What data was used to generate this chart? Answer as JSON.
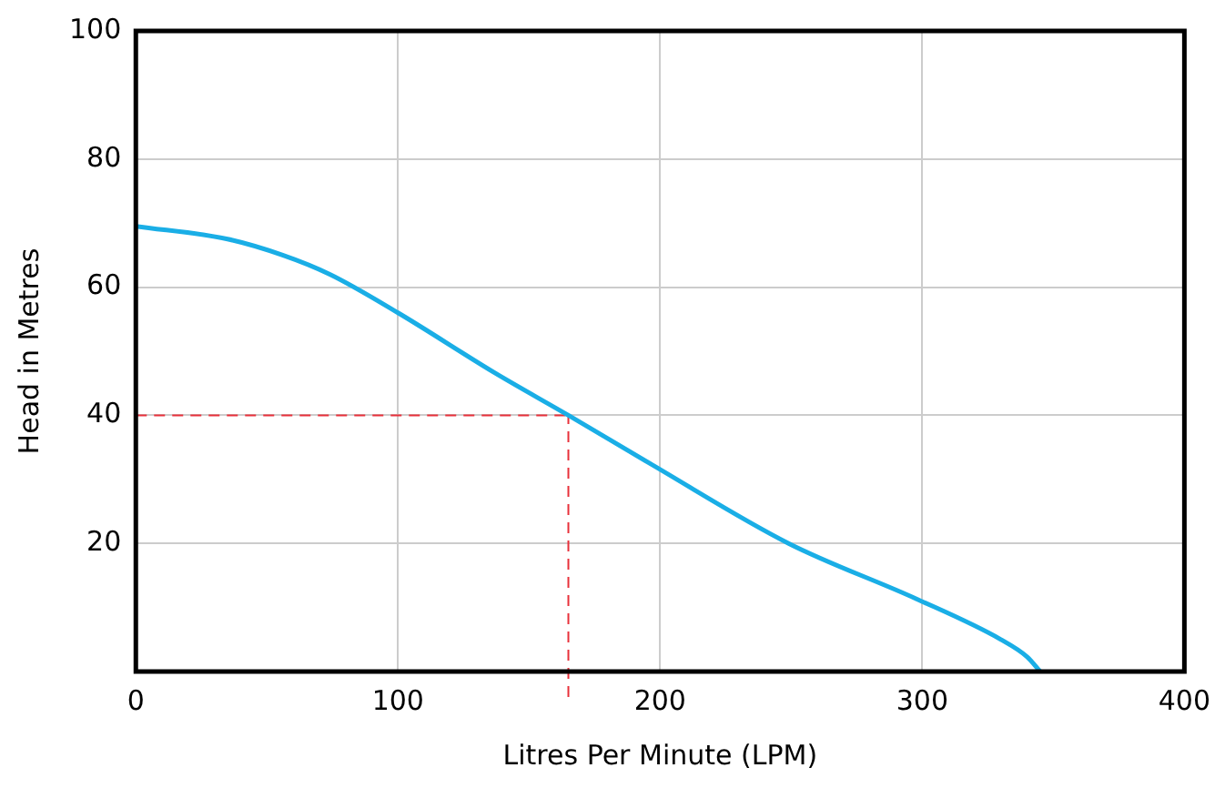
{
  "chart_data": {
    "type": "line",
    "xlabel": "Litres Per Minute (LPM)",
    "ylabel": "Head in Metres",
    "x": [
      0,
      35,
      56,
      74,
      100,
      137,
      165,
      196,
      249,
      298,
      330,
      340,
      345
    ],
    "series": [
      {
        "color": "#1aaee6",
        "values": [
          69.5,
          67.5,
          65,
          62,
          56,
          46.6,
          40,
          32.5,
          20,
          11.3,
          5,
          2.3,
          0
        ]
      }
    ],
    "xlim": [
      0,
      400
    ],
    "xticks": [
      0,
      100,
      200,
      300,
      400
    ],
    "ylim": [
      0,
      100
    ],
    "yticks": [
      {
        "value": 0,
        "label": null
      },
      20,
      40,
      60,
      80,
      100
    ],
    "ref_lines": [
      {
        "axis": "y",
        "value": 40,
        "color": "#e8303a",
        "line_style": "dashed"
      },
      {
        "axis": "x",
        "value": 165,
        "color": "#e8303a",
        "line_style": "dashed"
      }
    ],
    "grid": true,
    "legend": false,
    "marker": "none",
    "line_style": "solid"
  }
}
